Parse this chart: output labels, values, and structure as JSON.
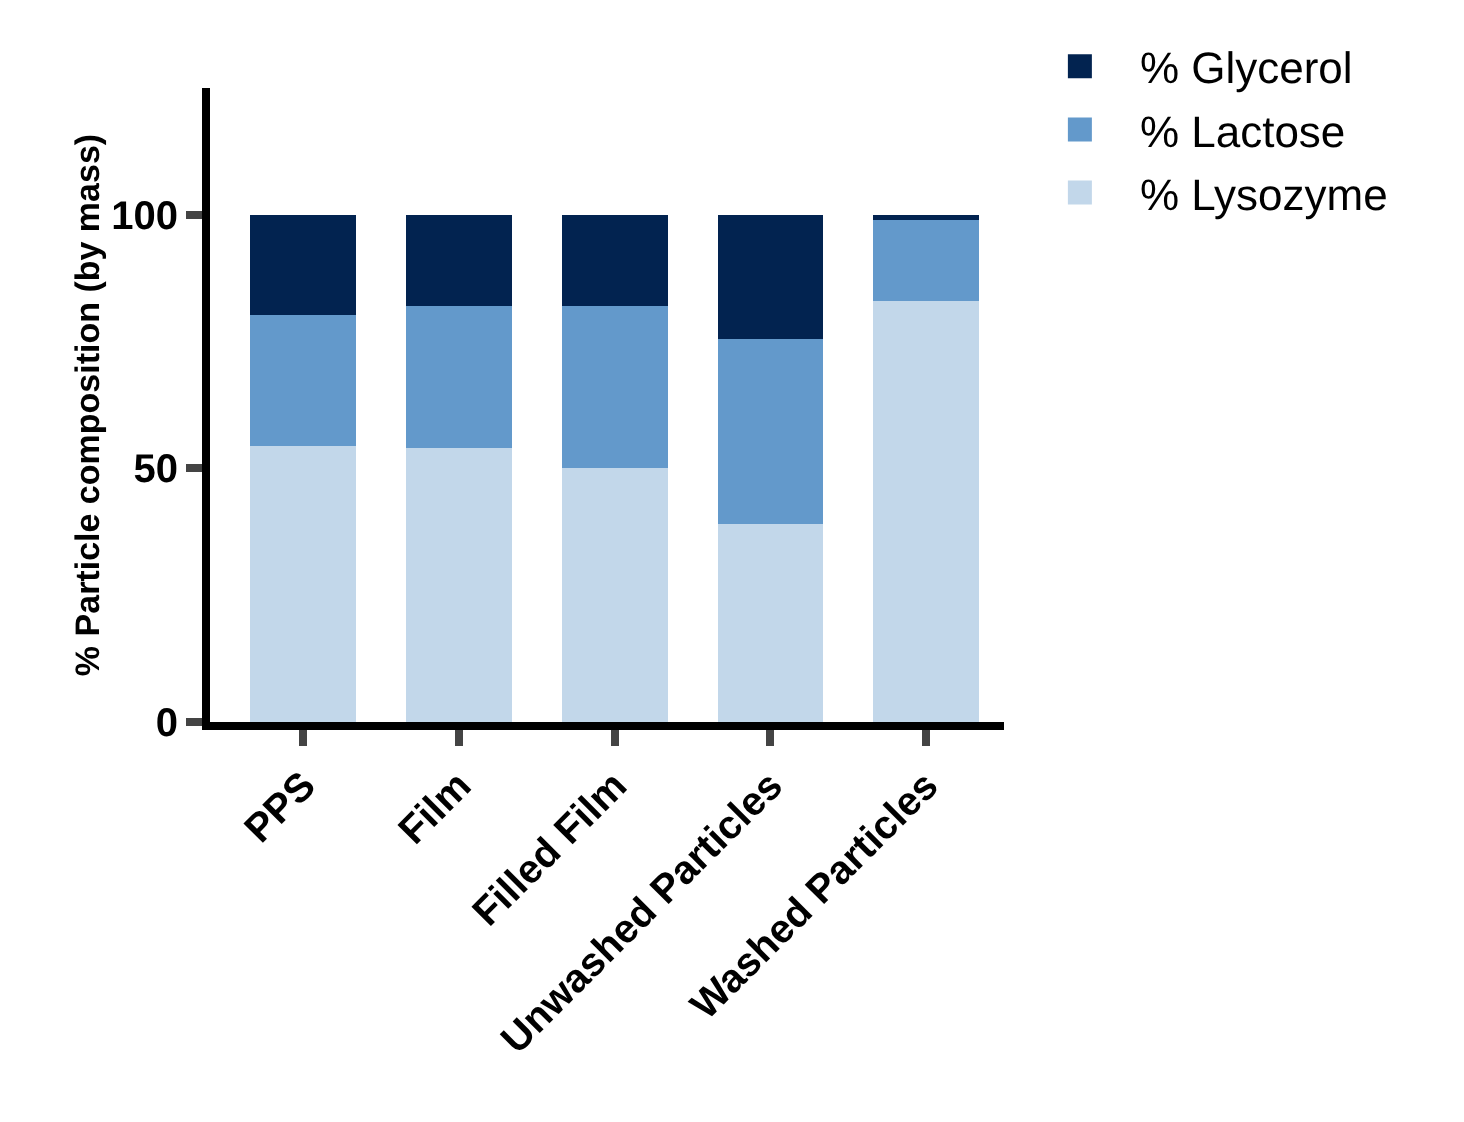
{
  "chart_data": {
    "type": "bar",
    "stacked": true,
    "ylabel": "% Particle composition (by mass)",
    "categories": [
      "PPS",
      "Film",
      "Filled Film",
      "Unwashed Particles",
      "Washed Particles"
    ],
    "series": [
      {
        "name": "% Lysozyme",
        "color": "#c2d7ea",
        "values": [
          54.5,
          54,
          50,
          39,
          83
        ]
      },
      {
        "name": "% Lactose",
        "color": "#6399cb",
        "values": [
          25.8,
          28,
          32,
          36.5,
          16
        ]
      },
      {
        "name": "% Glycerol",
        "color": "#022350",
        "values": [
          19.7,
          18,
          18,
          24.5,
          1
        ]
      }
    ],
    "ylim": [
      0,
      125
    ],
    "yticks": [
      0,
      50,
      100
    ],
    "grid": false,
    "legend": "top right"
  }
}
